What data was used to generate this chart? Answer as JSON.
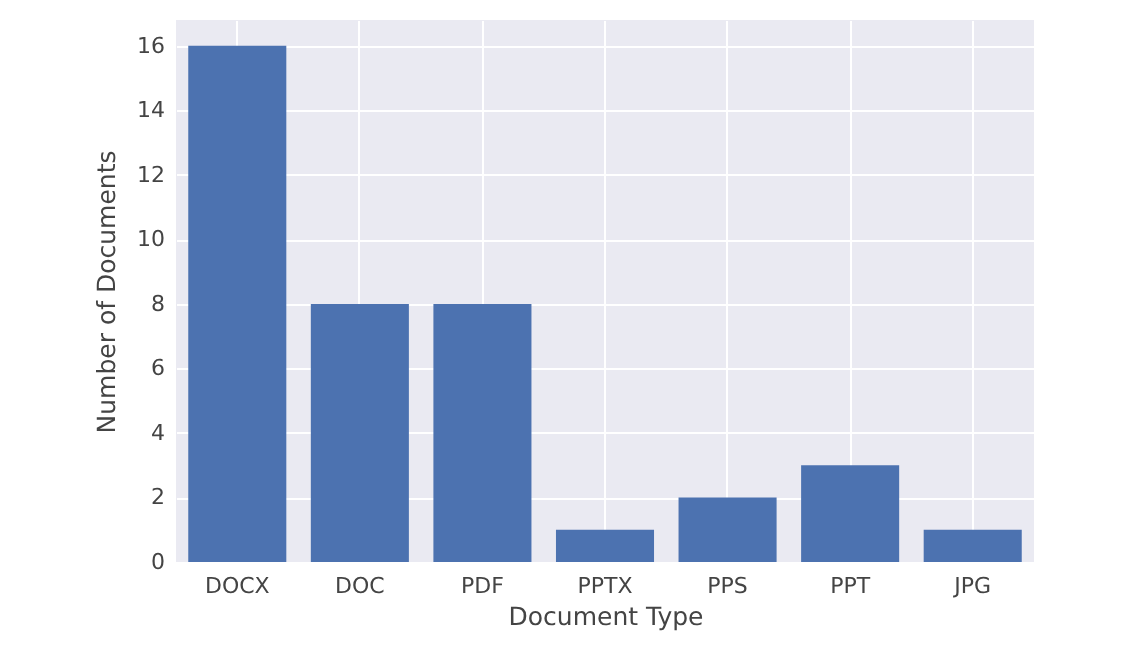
{
  "chart_data": {
    "type": "bar",
    "xlabel": "Document Type",
    "ylabel": "Number of Documents",
    "categories": [
      "DOCX",
      "DOC",
      "PDF",
      "PPTX",
      "PPS",
      "PPT",
      "JPG"
    ],
    "values": [
      16,
      8,
      8,
      1,
      2,
      3,
      1
    ],
    "color": "#4c72b0",
    "ylim": [
      0,
      16.8
    ],
    "yticks": [
      0,
      2,
      4,
      6,
      8,
      10,
      12,
      14,
      16
    ],
    "grid": true
  }
}
